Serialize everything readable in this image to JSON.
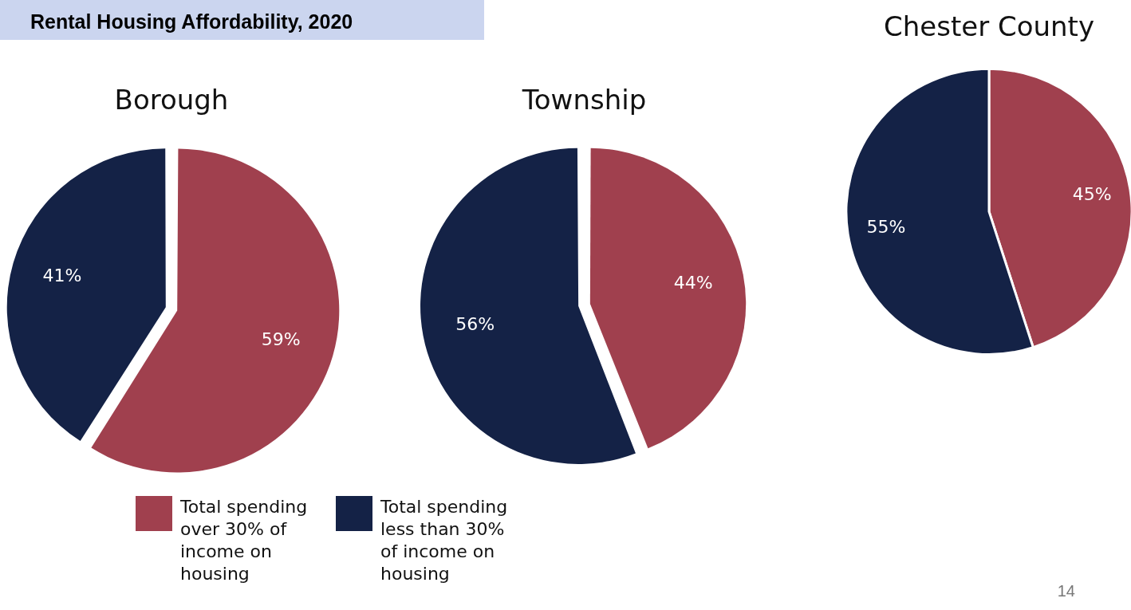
{
  "chart_data": [
    {
      "type": "other",
      "title": "Rental Housing Affordability, 2020",
      "annotations": [
        "14"
      ]
    },
    {
      "type": "pie",
      "title": "Borough",
      "categories": [
        "Total spending over 30% of income on housing",
        "Total spending less than 30% of income on housing"
      ],
      "values": [
        59,
        41
      ],
      "value_labels": [
        "59%",
        "41%"
      ],
      "colors": [
        "#a0404e",
        "#142246"
      ],
      "legend": "bottom"
    },
    {
      "type": "pie",
      "title": "Township",
      "categories": [
        null,
        null
      ],
      "values": [
        44,
        56
      ],
      "value_labels": [
        "44%",
        "56%"
      ],
      "colors": [
        "#a0404e",
        "#142246"
      ]
    },
    {
      "type": "pie",
      "title": "Chester County",
      "categories": [
        null,
        null
      ],
      "values": [
        45,
        55
      ],
      "value_labels": [
        "45%",
        "55%"
      ],
      "colors": [
        "#a0404e",
        "#142246"
      ]
    }
  ]
}
